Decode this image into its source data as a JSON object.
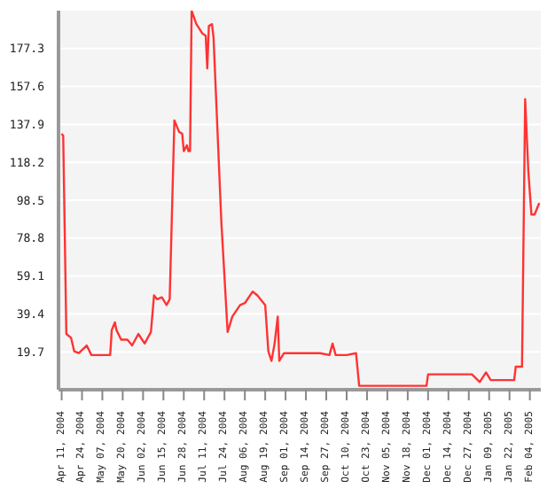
{
  "chart_data": {
    "type": "line",
    "color": "#ff3333",
    "grid": "y",
    "marker": "none",
    "line_style": "solid",
    "x": [
      "2004-04-11",
      "2004-04-12",
      "2004-04-14",
      "2004-04-17",
      "2004-04-19",
      "2004-04-22",
      "2004-04-27",
      "2004-04-30",
      "2004-05-07",
      "2004-05-12",
      "2004-05-13",
      "2004-05-15",
      "2004-05-16",
      "2004-05-19",
      "2004-05-23",
      "2004-05-26",
      "2004-05-30",
      "2004-06-03",
      "2004-06-07",
      "2004-06-09",
      "2004-06-11",
      "2004-06-14",
      "2004-06-17",
      "2004-06-19",
      "2004-06-22",
      "2004-06-25",
      "2004-06-27",
      "2004-06-28",
      "2004-06-30",
      "2004-07-01",
      "2004-07-02",
      "2004-07-03",
      "2004-07-06",
      "2004-07-10",
      "2004-07-12",
      "2004-07-13",
      "2004-07-14",
      "2004-07-16",
      "2004-07-17",
      "2004-07-22",
      "2004-07-26",
      "2004-07-29",
      "2004-08-03",
      "2004-08-06",
      "2004-08-11",
      "2004-08-14",
      "2004-08-19",
      "2004-08-21",
      "2004-08-23",
      "2004-08-25",
      "2004-08-27",
      "2004-08-28",
      "2004-08-31",
      "2004-09-11",
      "2004-09-23",
      "2004-09-29",
      "2004-10-01",
      "2004-10-03",
      "2004-10-10",
      "2004-10-16",
      "2004-10-18",
      "2004-10-24",
      "2004-11-07",
      "2004-11-30",
      "2004-12-01",
      "2004-12-29",
      "2005-01-03",
      "2005-01-07",
      "2005-01-10",
      "2005-01-25",
      "2005-01-26",
      "2005-01-30",
      "2005-02-01",
      "2005-02-03",
      "2005-02-05",
      "2005-02-07",
      "2005-02-10"
    ],
    "values": [
      133,
      132,
      29,
      27,
      20,
      19,
      23,
      18,
      18,
      18,
      31,
      35,
      31,
      26,
      26,
      23,
      29,
      24,
      30,
      49,
      47,
      48,
      44,
      47,
      140,
      134,
      133,
      124,
      127,
      124,
      124,
      197,
      190,
      185,
      184,
      167,
      189,
      190,
      183,
      87,
      30,
      38,
      44,
      45,
      51,
      49,
      44,
      20,
      15,
      24,
      38,
      15,
      19,
      19,
      19,
      18,
      24,
      18,
      18,
      19,
      2,
      2,
      2,
      2,
      8,
      8,
      4,
      9,
      5,
      5,
      12,
      12,
      151,
      114,
      91,
      91,
      97
    ],
    "xlim": [
      "2004-04-09",
      "2005-02-11"
    ],
    "xticks": [
      {
        "value": "2004-04-11",
        "label": "Apr 11, 2004"
      },
      {
        "value": "2004-04-24",
        "label": "Apr 24, 2004"
      },
      {
        "value": "2004-05-07",
        "label": "May 07, 2004"
      },
      {
        "value": "2004-05-20",
        "label": "May 20, 2004"
      },
      {
        "value": "2004-06-02",
        "label": "Jun 02, 2004"
      },
      {
        "value": "2004-06-15",
        "label": "Jun 15, 2004"
      },
      {
        "value": "2004-06-28",
        "label": "Jun 28, 2004"
      },
      {
        "value": "2004-07-11",
        "label": "Jul 11, 2004"
      },
      {
        "value": "2004-07-24",
        "label": "Jul 24, 2004"
      },
      {
        "value": "2004-08-06",
        "label": "Aug 06, 2004"
      },
      {
        "value": "2004-08-19",
        "label": "Aug 19, 2004"
      },
      {
        "value": "2004-09-01",
        "label": "Sep 01, 2004"
      },
      {
        "value": "2004-09-14",
        "label": "Sep 14, 2004"
      },
      {
        "value": "2004-09-27",
        "label": "Sep 27, 2004"
      },
      {
        "value": "2004-10-10",
        "label": "Oct 10, 2004"
      },
      {
        "value": "2004-10-23",
        "label": "Oct 23, 2004"
      },
      {
        "value": "2004-11-05",
        "label": "Nov 05, 2004"
      },
      {
        "value": "2004-11-18",
        "label": "Nov 18, 2004"
      },
      {
        "value": "2004-12-01",
        "label": "Dec 01, 2004"
      },
      {
        "value": "2004-12-14",
        "label": "Dec 14, 2004"
      },
      {
        "value": "2004-12-27",
        "label": "Dec 27, 2004"
      },
      {
        "value": "2005-01-09",
        "label": "Jan 09, 2005"
      },
      {
        "value": "2005-01-22",
        "label": "Jan 22, 2005"
      },
      {
        "value": "2005-02-04",
        "label": "Feb 04, 2005"
      }
    ],
    "ylim": [
      0,
      197
    ],
    "yticks": [
      19.7,
      39.4,
      59.1,
      78.8,
      98.5,
      118.2,
      137.9,
      157.6,
      177.3
    ]
  }
}
